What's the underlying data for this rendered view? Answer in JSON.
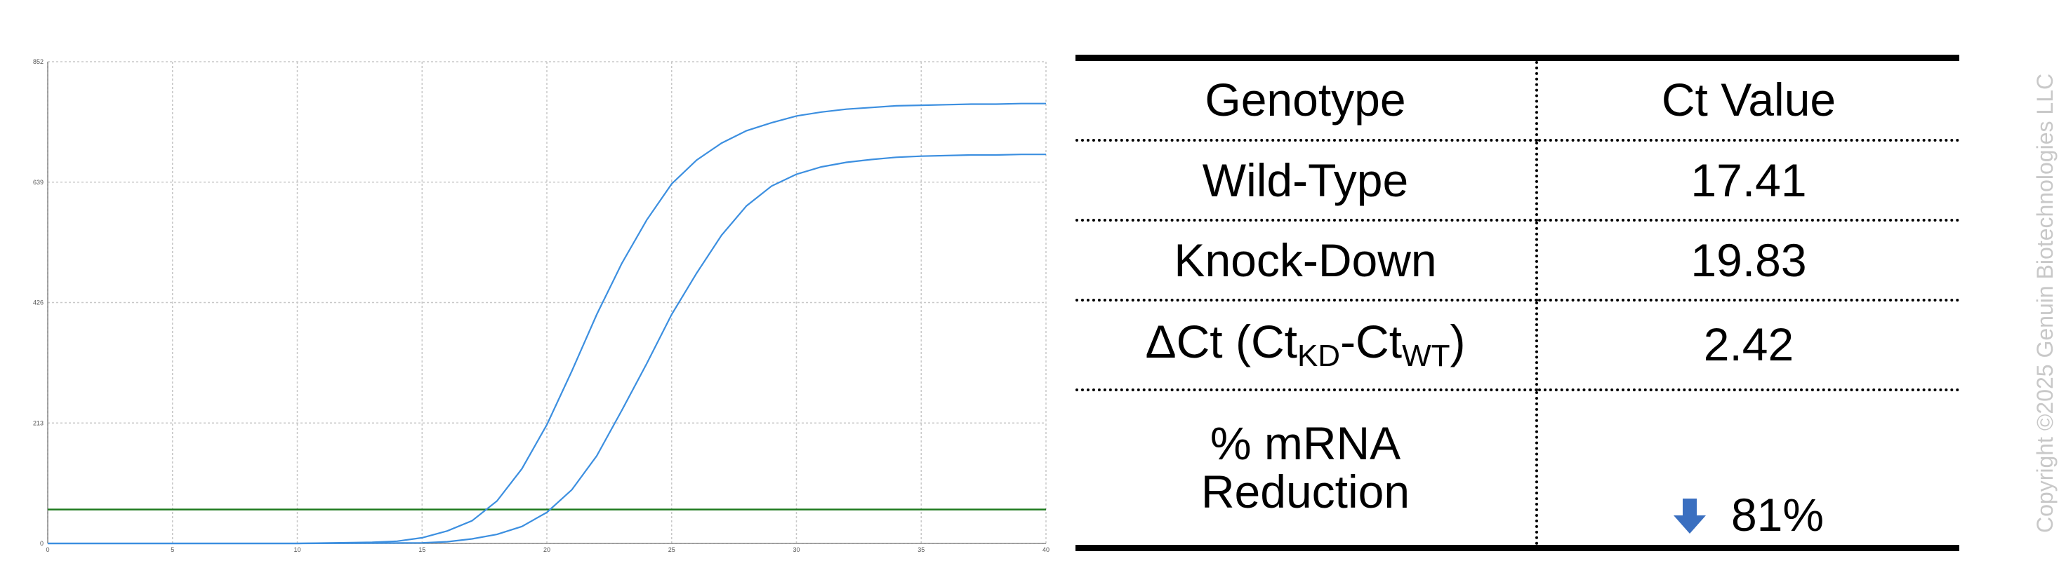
{
  "chart_data": {
    "type": "line",
    "title": "",
    "xlabel": "",
    "ylabel": "",
    "xlim": [
      0,
      40
    ],
    "ylim": [
      0,
      852
    ],
    "xticks": [
      0,
      5,
      10,
      15,
      20,
      25,
      30,
      35,
      40
    ],
    "yticks": [
      0,
      213,
      426,
      639,
      852
    ],
    "grid": true,
    "series": [
      {
        "x": [
          0,
          5,
          10,
          13,
          14,
          15,
          16,
          17,
          18,
          19,
          20,
          21,
          22,
          23,
          24,
          25,
          26,
          27,
          28,
          29,
          30,
          31,
          32,
          33,
          34,
          35,
          36,
          37,
          38,
          39,
          40
        ],
        "y": [
          0,
          0,
          0,
          2,
          4,
          10,
          22,
          40,
          75,
          132,
          210,
          305,
          405,
          495,
          572,
          636,
          678,
          708,
          730,
          744,
          756,
          763,
          768,
          771,
          774,
          775,
          776,
          777,
          777,
          778,
          778
        ]
      },
      {
        "x": [
          0,
          5,
          10,
          15,
          16,
          17,
          18,
          19,
          20,
          21,
          22,
          23,
          24,
          25,
          26,
          27,
          28,
          29,
          30,
          31,
          32,
          33,
          34,
          35,
          36,
          37,
          38,
          39,
          40
        ],
        "y": [
          0,
          0,
          0,
          1,
          3,
          8,
          16,
          30,
          55,
          95,
          155,
          235,
          318,
          405,
          478,
          545,
          597,
          632,
          653,
          666,
          674,
          679,
          683,
          685,
          686,
          687,
          687,
          688,
          688
        ]
      }
    ],
    "threshold": 60,
    "colors": {
      "curve": "#3c8fe0",
      "threshold": "#1e7a1e",
      "grid": "#c8c8c8"
    }
  },
  "table": {
    "header": {
      "genotype": "Genotype",
      "ct_value": "Ct Value"
    },
    "rows": [
      {
        "label": "Wild-Type",
        "value": "17.41"
      },
      {
        "label": "Knock-Down",
        "value": "19.83"
      }
    ],
    "delta": {
      "prefix": "ΔCt (Ct",
      "sub1": "KD",
      "mid": "-Ct",
      "sub2": "WT",
      "suffix": ")",
      "value": "2.42"
    },
    "reduction": {
      "line1": "% mRNA",
      "line2": "Reduction",
      "value": "81%",
      "arrow_icon": "down-arrow-icon",
      "arrow_color": "#3a6fc0"
    }
  },
  "copyright": "Copyright ©2025 Genuin Biotechnologies LLC"
}
